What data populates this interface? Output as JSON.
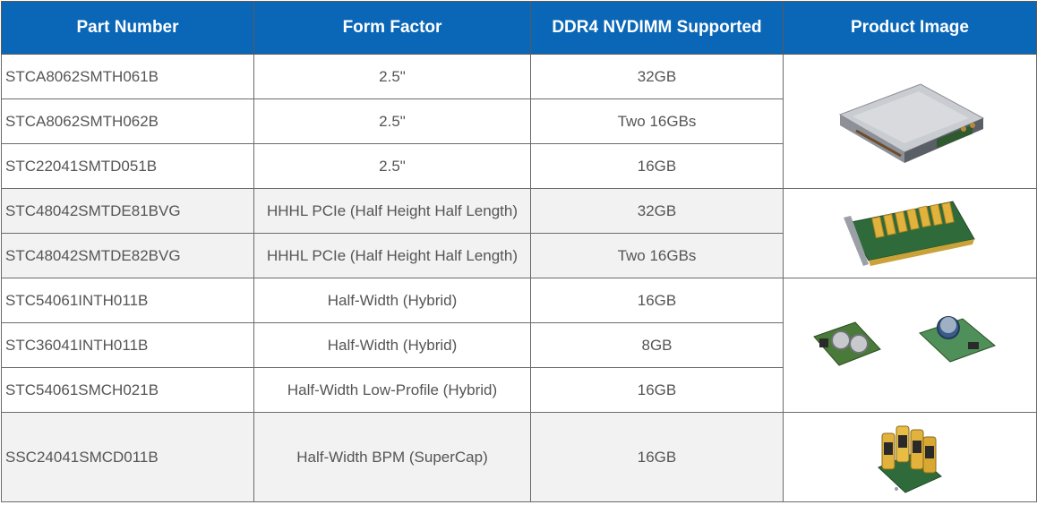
{
  "headers": {
    "part_number": "Part Number",
    "form_factor": "Form Factor",
    "ddr4": "DDR4 NVDIMM Supported",
    "product_image": "Product Image"
  },
  "rows": [
    {
      "part": "STCA8062SMTH061B",
      "form": "2.5\"",
      "ddr4": "32GB"
    },
    {
      "part": "STCA8062SMTH062B",
      "form": "2.5\"",
      "ddr4": "Two 16GBs"
    },
    {
      "part": "STC22041SMTD051B",
      "form": "2.5\"",
      "ddr4": "16GB"
    },
    {
      "part": "STC48042SMTDE81BVG",
      "form": "HHHL PCIe (Half Height Half Length)",
      "ddr4": "32GB"
    },
    {
      "part": "STC48042SMTDE82BVG",
      "form": "HHHL PCIe (Half Height Half Length)",
      "ddr4": "Two 16GBs"
    },
    {
      "part": "STC54061INTH011B",
      "form": "Half-Width (Hybrid)",
      "ddr4": "16GB"
    },
    {
      "part": "STC36041INTH011B",
      "form": "Half-Width (Hybrid)",
      "ddr4": "8GB"
    },
    {
      "part": "STC54061SMCH021B",
      "form": "Half-Width Low-Profile (Hybrid)",
      "ddr4": "16GB"
    },
    {
      "part": "SSC24041SMCD011B",
      "form": "Half-Width BPM (SuperCap)",
      "ddr4": "16GB"
    }
  ],
  "colors": {
    "header_bg": "#0a67b7",
    "header_text": "#ffffff",
    "shaded_row": "#f2f2f2",
    "text": "#555555"
  }
}
